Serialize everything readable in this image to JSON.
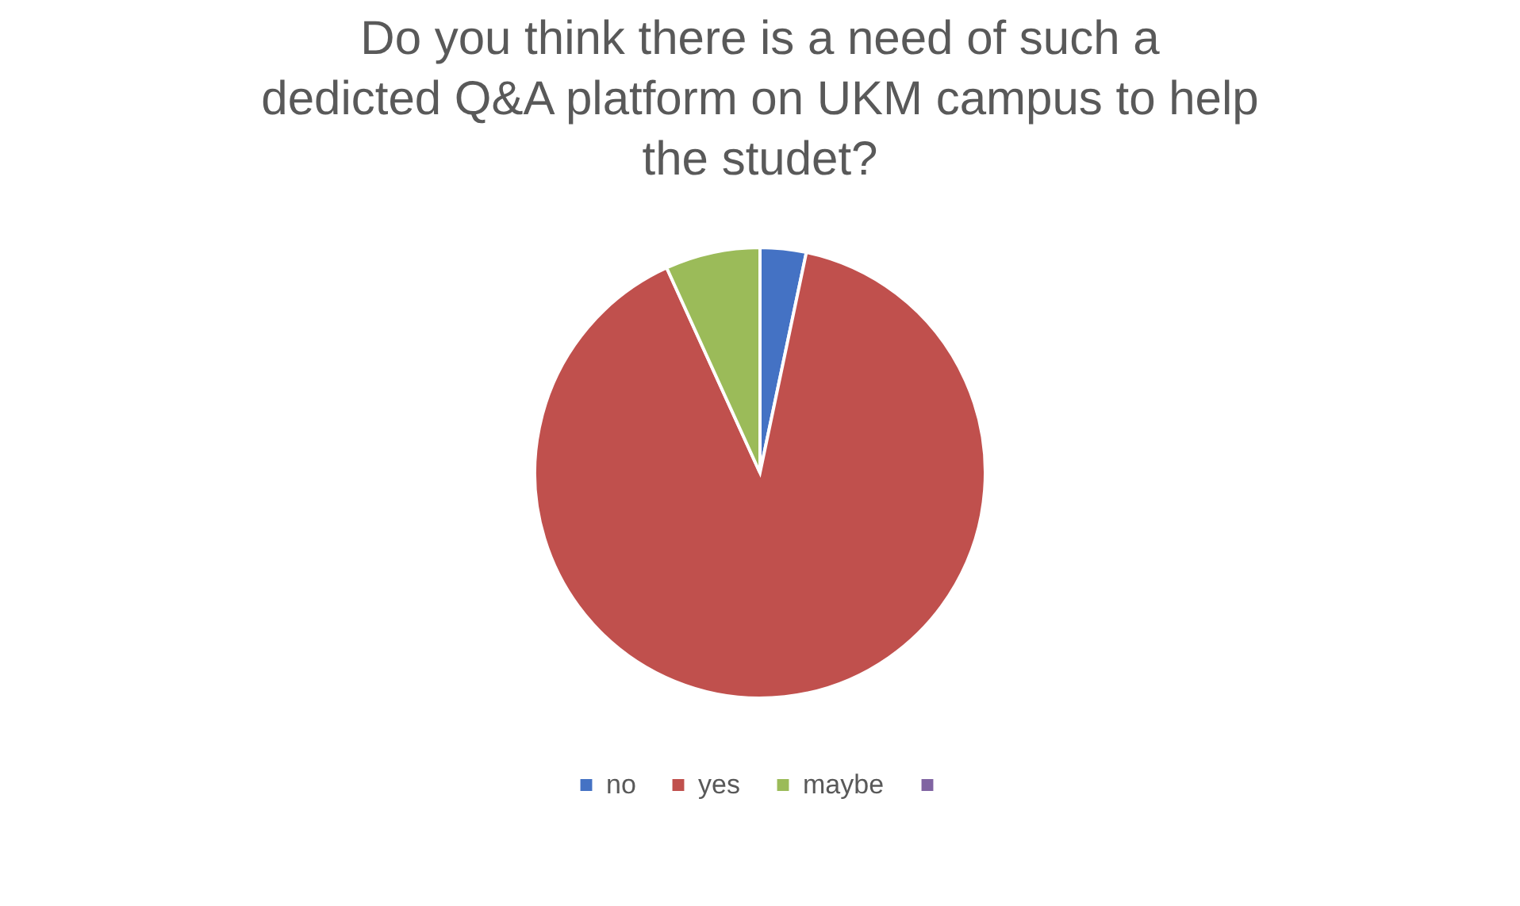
{
  "chart_data": {
    "type": "pie",
    "title": "Do you think there is a need of such a dedicted Q&A platform on UKM campus to help the studet?",
    "categories": [
      "no",
      "yes",
      "maybe",
      null
    ],
    "values": [
      3.3,
      89.9,
      6.8,
      0
    ],
    "colors": [
      "#4472c4",
      "#c0504d",
      "#9bbb59",
      "#8064a2"
    ],
    "legend": "bottom"
  }
}
